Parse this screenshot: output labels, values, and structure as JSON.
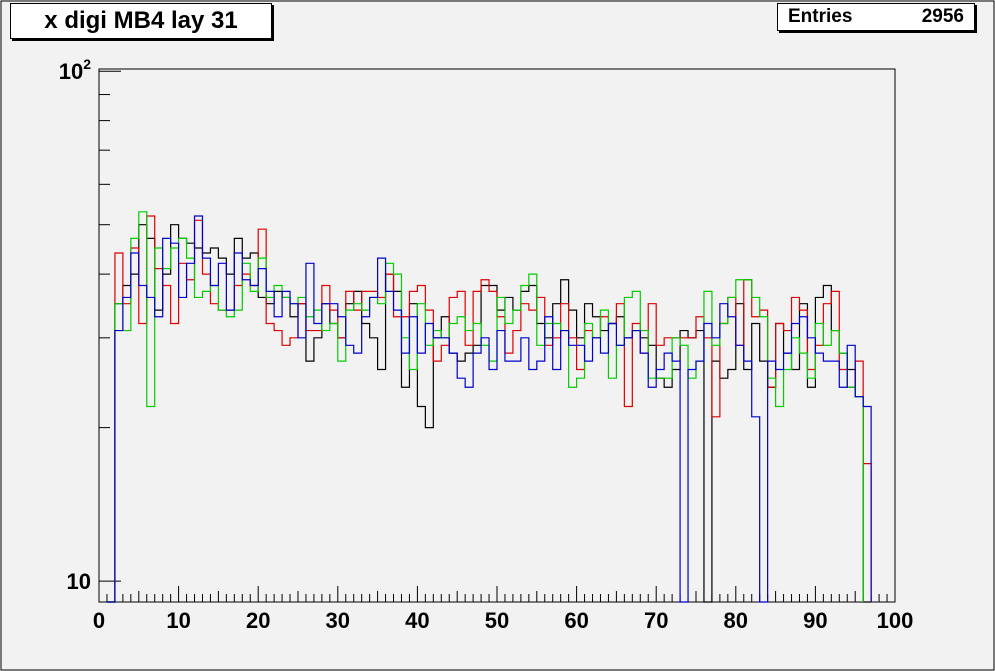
{
  "chart_data": {
    "type": "histogram",
    "title": "x digi MB4 lay 31",
    "stats": {
      "label": "Entries",
      "value": "2956"
    },
    "xlim": [
      0,
      100
    ],
    "ylim": [
      9.1,
      101
    ],
    "log_y": true,
    "x_ticks": [
      "0",
      "10",
      "20",
      "30",
      "40",
      "50",
      "60",
      "70",
      "80",
      "90",
      "100"
    ],
    "y_ticks": [
      {
        "value": 10,
        "label": "10"
      },
      {
        "value": 100,
        "label": "10",
        "sup": "2"
      }
    ],
    "grid": false,
    "legend": "none",
    "bin_start": 1,
    "bin_width": 1,
    "series": [
      {
        "color": "#000000",
        "values": [
          9,
          35,
          38,
          40,
          50,
          47,
          34,
          40,
          50,
          47,
          46,
          45,
          44,
          45,
          43,
          40,
          47,
          43,
          44,
          36,
          35,
          37,
          36,
          33,
          35,
          27,
          30,
          35,
          32,
          30,
          35,
          37,
          32,
          30,
          26,
          40,
          37,
          24,
          35,
          22,
          20,
          30,
          33,
          28,
          27,
          28,
          29,
          38,
          38,
          34,
          36,
          34,
          37,
          38,
          32,
          30,
          35,
          39,
          34,
          30,
          35,
          33,
          31,
          32,
          33,
          30,
          31,
          30,
          29,
          25,
          24,
          26,
          31,
          30,
          31,
          9,
          27,
          25,
          26,
          35,
          26,
          32,
          27,
          24,
          32,
          28,
          26,
          35,
          24,
          36,
          38,
          31,
          28,
          26,
          23,
          9
        ]
      },
      {
        "color": "#dd0000",
        "values": [
          9,
          44,
          35,
          45,
          32,
          52,
          41,
          38,
          32,
          42,
          39,
          51,
          40,
          35,
          34,
          34,
          38,
          40,
          38,
          49,
          32,
          31,
          29,
          30,
          35,
          31,
          31,
          38,
          34,
          30,
          37,
          34,
          37,
          37,
          36,
          40,
          33,
          33,
          37,
          38,
          34,
          27,
          29,
          36,
          37,
          29,
          37,
          39,
          37,
          33,
          28,
          31,
          35,
          34,
          36,
          29,
          30,
          35,
          30,
          26,
          31,
          30,
          33,
          32,
          35,
          22,
          32,
          28,
          35,
          29,
          30,
          30,
          30,
          30,
          33,
          30,
          21,
          32,
          36,
          29,
          39,
          33,
          34,
          24,
          32,
          31,
          36,
          34,
          26,
          29,
          35,
          37,
          26,
          24,
          27,
          17
        ]
      },
      {
        "color": "#00cc00",
        "values": [
          9,
          35,
          31,
          47,
          53,
          22,
          45,
          41,
          45,
          47,
          43,
          36,
          37,
          38,
          34,
          33,
          34,
          42,
          37,
          43,
          36,
          38,
          36,
          35,
          36,
          33,
          34,
          31,
          32,
          27,
          34,
          35,
          34,
          36,
          35,
          42,
          40,
          30,
          26,
          35,
          29,
          31,
          30,
          32,
          33,
          31,
          32,
          29,
          27,
          36,
          32,
          34,
          38,
          40,
          29,
          32,
          32,
          31,
          24,
          25,
          32,
          30,
          34,
          25,
          29,
          36,
          37,
          31,
          25,
          25,
          25,
          30,
          29,
          25,
          27,
          37,
          29,
          32,
          36,
          39,
          39,
          36,
          33,
          25,
          22,
          26,
          30,
          28,
          25,
          32,
          29,
          31,
          28,
          24,
          23
        ]
      },
      {
        "color": "#0000cc",
        "values": [
          9,
          31,
          36,
          44,
          38,
          36,
          33,
          47,
          46,
          36,
          42,
          52,
          43,
          38,
          42,
          34,
          44,
          39,
          38,
          41,
          37,
          33,
          37,
          35,
          30,
          42,
          32,
          35,
          35,
          33,
          29,
          28,
          33,
          36,
          43,
          37,
          34,
          28,
          33,
          28,
          32,
          30,
          30,
          28,
          25,
          24,
          28,
          30,
          26,
          31,
          27,
          27,
          30,
          26,
          27,
          33,
          26,
          31,
          29,
          29,
          27,
          30,
          28,
          32,
          29,
          30,
          31,
          28,
          24,
          26,
          28,
          27,
          9,
          26,
          27,
          32,
          30,
          35,
          33,
          29,
          27,
          21,
          9,
          27,
          26,
          28,
          32,
          33,
          30,
          28,
          27,
          27,
          24,
          29,
          23,
          22
        ]
      }
    ]
  }
}
